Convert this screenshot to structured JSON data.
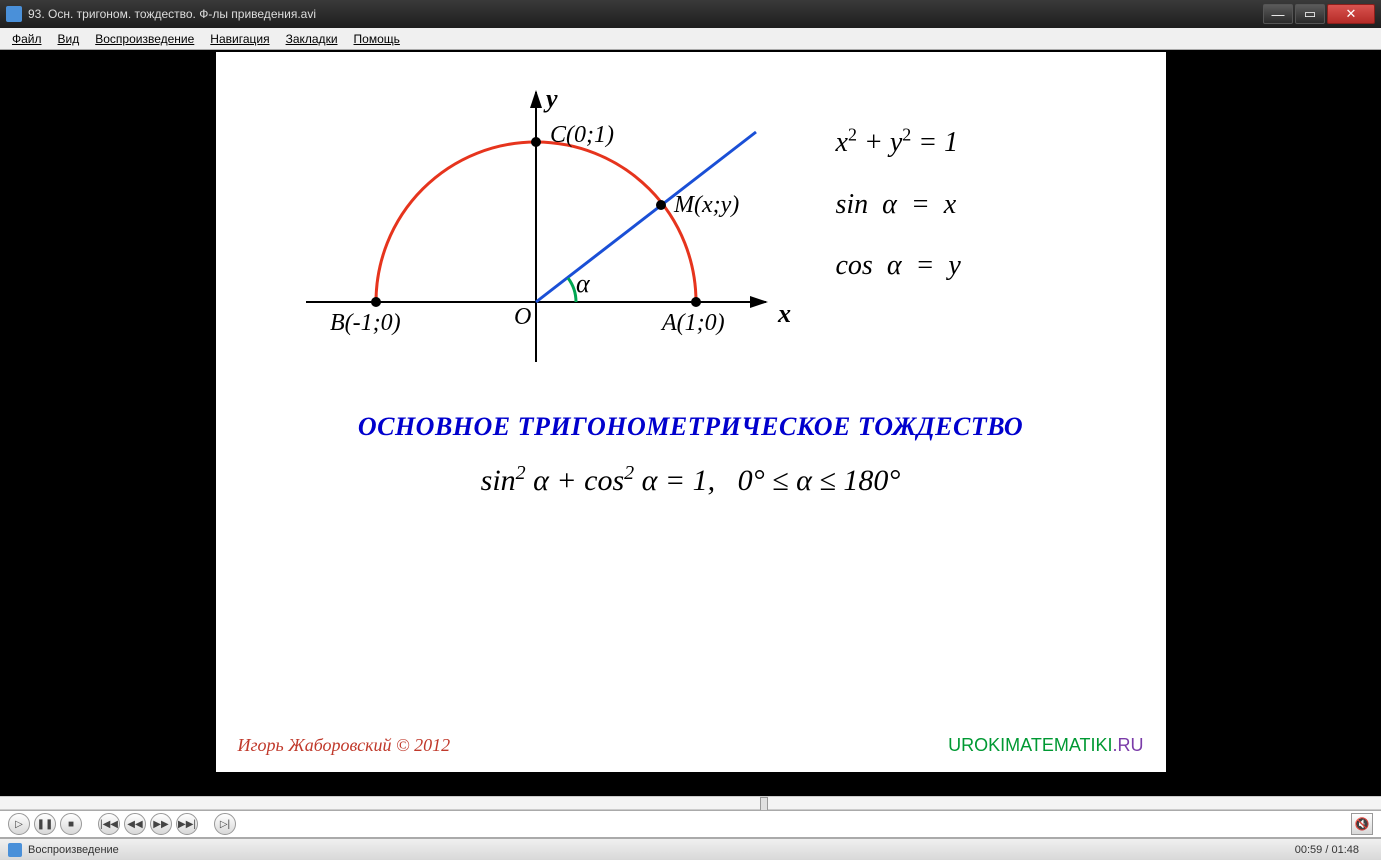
{
  "window": {
    "title": "93. Осн. тригоном. тождество. Ф-лы приведения.avi"
  },
  "window_buttons": {
    "min": "—",
    "max": "▭",
    "close": "✕"
  },
  "menu": {
    "items": [
      "Файл",
      "Вид",
      "Воспроизведение",
      "Навигация",
      "Закладки",
      "Помощь"
    ]
  },
  "diagram": {
    "axis_y_label": "y",
    "axis_x_label": "x",
    "origin_label": "O",
    "angle_label": "α",
    "point_A": "A(1;0)",
    "point_B": "B(-1;0)",
    "point_C": "C(0;1)",
    "point_M": "M(x;y)",
    "arc_color": "#e6341d",
    "line_color": "#1a4fd6",
    "axis_color": "#000000",
    "angle_arc_color": "#00a651"
  },
  "equations": {
    "eq1_html": "x<sup>2</sup> + y<sup>2</sup> = 1",
    "eq2_html": "sin &nbsp;α&nbsp; = &nbsp;x",
    "eq3_html": "cos &nbsp;α&nbsp; = &nbsp;y"
  },
  "heading": "ОСНОВНОЕ ТРИГОНОМЕТРИЧЕСКОЕ ТОЖДЕСТВО",
  "identity_html": "sin<sup>2</sup> α + cos<sup>2</sup> α = 1, &nbsp; 0° ≤ α ≤ 180°",
  "credits": {
    "left": "Игорь Жаборовский © 2012",
    "right_main": "UROKIMATEMATIKI",
    "right_tail": ".RU"
  },
  "controls": {
    "play": "▷",
    "pause": "❚❚",
    "stop": "■",
    "prev_file": "|◀◀",
    "prev": "◀◀",
    "next": "▶▶",
    "next_file": "▶▶|",
    "step": "▷|",
    "mute": "🔇"
  },
  "playback": {
    "progress_pct": 55
  },
  "status": {
    "text": "Воспроизведение",
    "time": "00:59 / 01:48"
  }
}
